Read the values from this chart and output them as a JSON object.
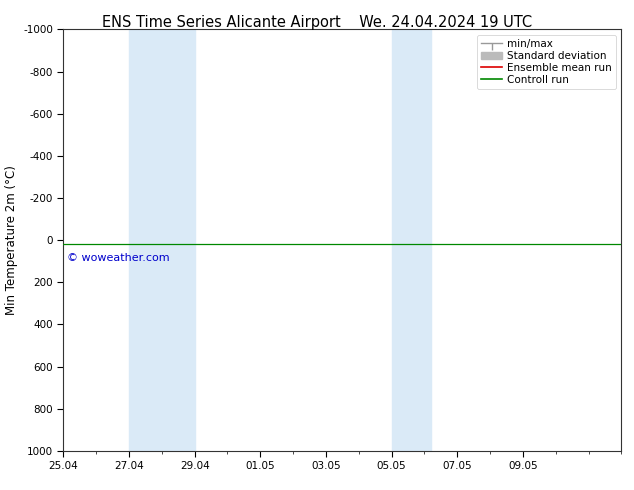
{
  "title_left": "ENS Time Series Alicante Airport",
  "title_right": "We. 24.04.2024 19 UTC",
  "ylabel": "Min Temperature 2m (°C)",
  "ylim_bottom": 1000,
  "ylim_top": -1000,
  "yticks": [
    -1000,
    -800,
    -600,
    -400,
    -200,
    0,
    200,
    400,
    600,
    800,
    1000
  ],
  "ytick_labels": [
    "-1000",
    "-800",
    "-600",
    "-400",
    "-200",
    "0",
    "200",
    "400",
    "600",
    "800",
    "1000"
  ],
  "background_color": "#ffffff",
  "plot_bg_color": "#ffffff",
  "band_color": "#daeaf7",
  "bands_april": [
    [
      27.0,
      29.0
    ]
  ],
  "bands_may": [
    [
      5.0,
      6.2
    ]
  ],
  "line_y": 20,
  "xtick_labels": [
    "25.04",
    "27.04",
    "29.04",
    "01.05",
    "03.05",
    "05.05",
    "07.05",
    "09.05"
  ],
  "xtick_days": [
    0,
    2,
    4,
    7,
    9,
    11,
    13,
    15
  ],
  "x_min": 0,
  "x_max": 17,
  "legend_labels": [
    "min/max",
    "Standard deviation",
    "Ensemble mean run",
    "Controll run"
  ],
  "legend_line_colors": [
    "#999999",
    "#bbbbbb",
    "#dd0000",
    "#008800"
  ],
  "watermark": "© woweather.com",
  "watermark_color": "#0000cc",
  "title_fontsize": 10.5,
  "axis_fontsize": 8.5,
  "tick_fontsize": 7.5,
  "legend_fontsize": 7.5
}
